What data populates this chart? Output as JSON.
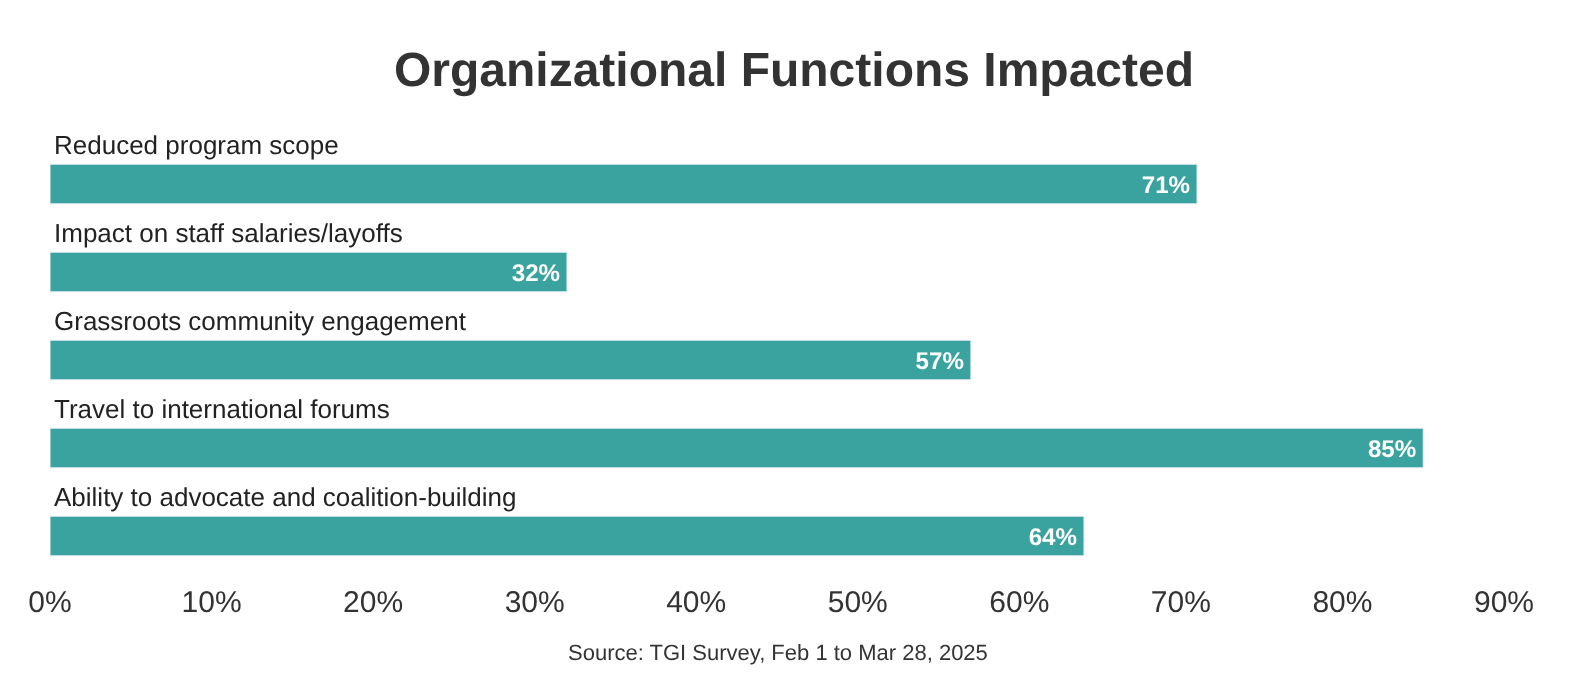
{
  "chart_data": {
    "type": "bar",
    "orientation": "horizontal",
    "title": "Organizational Functions Impacted",
    "categories": [
      "Reduced program scope",
      "Impact on staff salaries/layoffs",
      "Grassroots community engagement",
      "Travel to international forums",
      "Ability to advocate and coalition-building"
    ],
    "values": [
      71,
      32,
      57,
      85,
      64
    ],
    "value_labels": [
      "71%",
      "32%",
      "57%",
      "85%",
      "64%"
    ],
    "color": "#3aa39f",
    "xlim": [
      0,
      90
    ],
    "xticks": [
      {
        "value": 0,
        "label": "0%"
      },
      {
        "value": 10,
        "label": "10%"
      },
      {
        "value": 20,
        "label": "20%"
      },
      {
        "value": 30,
        "label": "30%"
      },
      {
        "value": 40,
        "label": "40%"
      },
      {
        "value": 50,
        "label": "50%"
      },
      {
        "value": 60,
        "label": "60%"
      },
      {
        "value": 70,
        "label": "70%"
      },
      {
        "value": 80,
        "label": "80%"
      },
      {
        "value": 90,
        "label": "90%"
      }
    ],
    "annotations": [
      "Source: TGI Survey, Feb 1 to Mar 28, 2025"
    ]
  }
}
